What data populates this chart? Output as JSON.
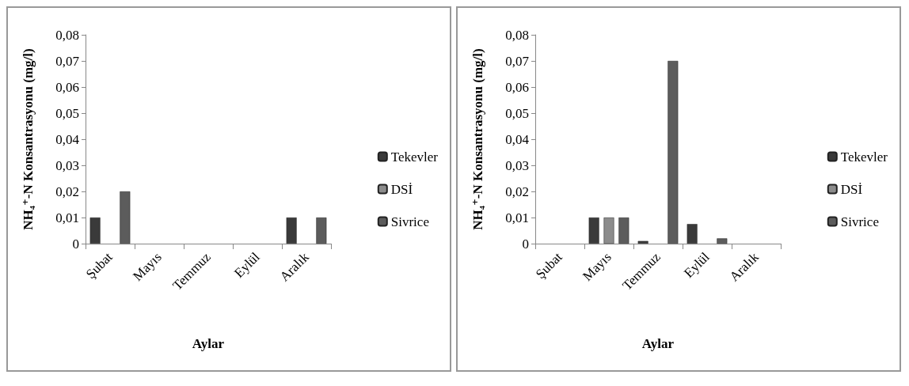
{
  "chart_data": [
    {
      "type": "bar",
      "xlabel": "Aylar",
      "ylabel": "NH₄⁺-N Konsantrasyonu (mg/l)",
      "categories": [
        "Şubat",
        "Mayıs",
        "Temmuz",
        "Eylül",
        "Aralık"
      ],
      "series": [
        {
          "name": "Tekevler",
          "color": "#3a3a3a",
          "values": [
            0.01,
            null,
            null,
            null,
            0.01
          ]
        },
        {
          "name": "DSİ",
          "color": "#8c8c8c",
          "values": [
            null,
            null,
            null,
            null,
            null
          ]
        },
        {
          "name": "Sivrice",
          "color": "#5c5c5c",
          "values": [
            0.02,
            null,
            null,
            null,
            0.01
          ]
        }
      ],
      "ylim": [
        0,
        0.08
      ],
      "yticks": [
        0,
        {
          "value": 0.01,
          "label": "0,01"
        },
        {
          "value": 0.02,
          "label": "0,02"
        },
        {
          "value": 0.03,
          "label": "0,03"
        },
        {
          "value": 0.04,
          "label": "0,04"
        },
        {
          "value": 0.05,
          "label": "0,05"
        },
        {
          "value": 0.06,
          "label": "0,06"
        },
        {
          "value": 0.07,
          "label": "0,07"
        },
        {
          "value": 0.08,
          "label": "0,08"
        }
      ],
      "grid": false,
      "legend": "right"
    },
    {
      "type": "bar",
      "xlabel": "Aylar",
      "ylabel": "NH₄⁺-N Konsantrasyonu (mg/l)",
      "categories": [
        "Şubat",
        "Mayıs",
        "Temmuz",
        "Eylül",
        "Aralık"
      ],
      "series": [
        {
          "name": "Tekevler",
          "color": "#3a3a3a",
          "values": [
            null,
            0.01,
            0.001,
            0.0075,
            null
          ]
        },
        {
          "name": "DSİ",
          "color": "#8c8c8c",
          "values": [
            null,
            0.01,
            null,
            null,
            null
          ]
        },
        {
          "name": "Sivrice",
          "color": "#5c5c5c",
          "values": [
            null,
            0.01,
            0.07,
            0.002,
            null
          ]
        }
      ],
      "ylim": [
        0,
        0.08
      ],
      "yticks": [
        0,
        {
          "value": 0.01,
          "label": "0,01"
        },
        {
          "value": 0.02,
          "label": "0,02"
        },
        {
          "value": 0.03,
          "label": "0,03"
        },
        {
          "value": 0.04,
          "label": "0,04"
        },
        {
          "value": 0.05,
          "label": "0,05"
        },
        {
          "value": 0.06,
          "label": "0,06"
        },
        {
          "value": 0.07,
          "label": "0,07"
        },
        {
          "value": 0.08,
          "label": "0,08"
        }
      ],
      "grid": false,
      "legend": "right"
    }
  ]
}
